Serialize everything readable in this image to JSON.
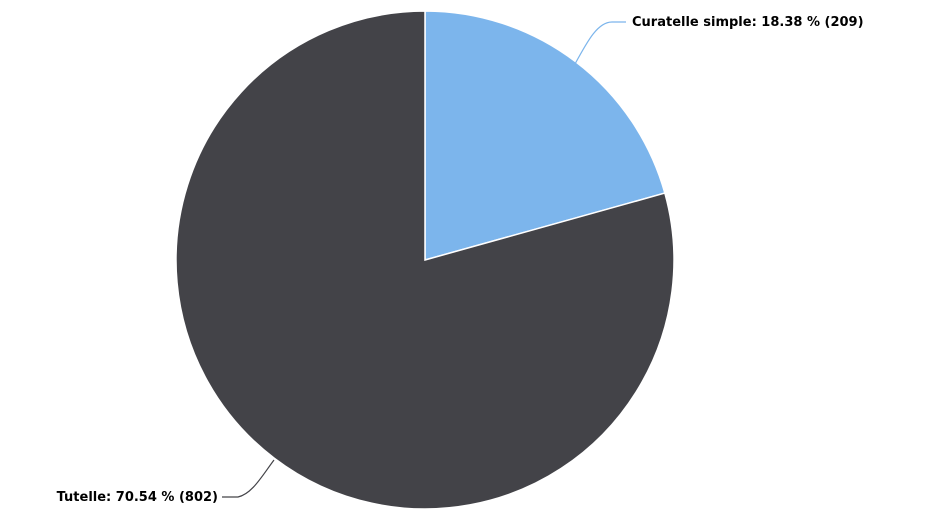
{
  "chart_data": {
    "type": "pie",
    "title": "",
    "slices": [
      {
        "label": "Curatelle simple",
        "percent": 18.38,
        "count": 209,
        "color": "#7cb5ec",
        "display": "Curatelle simple: 18.38 % (209)"
      },
      {
        "label": "Tutelle",
        "percent": 70.54,
        "count": 802,
        "color": "#434348",
        "display": "Tutelle: 70.54 % (802)"
      }
    ],
    "legend": "none"
  }
}
